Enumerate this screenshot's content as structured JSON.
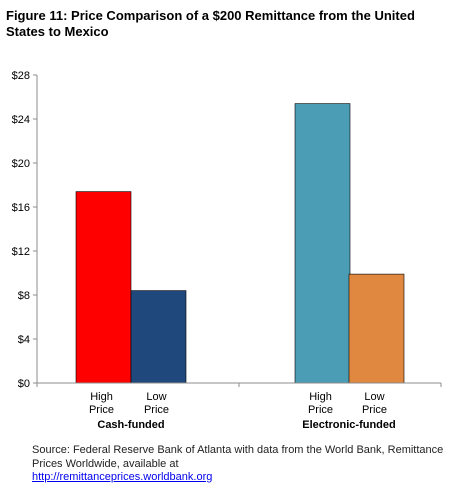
{
  "title": "Figure 11: Price Comparison of a $200 Remittance from the United States to Mexico",
  "chart_data": {
    "type": "bar",
    "categories": [
      "Cash-funded",
      "Electronic-funded"
    ],
    "bars": [
      {
        "group": 0,
        "label_lines": [
          "High",
          "Price"
        ],
        "value": 17.4,
        "color": "#ff0000"
      },
      {
        "group": 0,
        "label_lines": [
          "Low",
          "Price"
        ],
        "value": 8.4,
        "color": "#1f497d"
      },
      {
        "group": 1,
        "label_lines": [
          "High",
          "Price"
        ],
        "value": 25.4,
        "color": "#4a9db5"
      },
      {
        "group": 1,
        "label_lines": [
          "Low",
          "Price"
        ],
        "value": 9.9,
        "color": "#e0883f"
      }
    ],
    "ylim": [
      0,
      28
    ],
    "yticks": [
      "$0",
      "$4",
      "$8",
      "$12",
      "$16",
      "$20",
      "$24",
      "$28"
    ],
    "ytick_values": [
      0,
      4,
      8,
      12,
      16,
      20,
      24,
      28
    ],
    "grid": false,
    "legend": "none"
  },
  "source": {
    "text": "Source: Federal Reserve Bank of Atlanta with data from the World  Bank, Remittance Prices Worldwide, available at",
    "link": "http://remittanceprices.worldbank.org"
  }
}
